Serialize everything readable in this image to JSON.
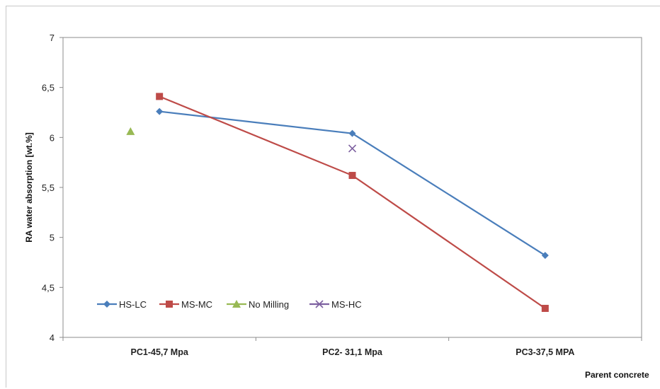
{
  "chart_data": {
    "type": "line",
    "xlabel": "Parent concrete",
    "ylabel": "RA water absorption [wt.%]",
    "categories": [
      "PC1-45,7 Mpa",
      "PC2- 31,1 Mpa",
      "PC3-37,5 MPA"
    ],
    "yticks": [
      "4",
      "4,5",
      "5",
      "5,5",
      "6",
      "6,5",
      "7"
    ],
    "ylim": [
      4,
      7
    ],
    "grid": false,
    "legend_position": "bottom-left",
    "series": [
      {
        "name": "HS-LC",
        "marker": "diamond",
        "color": "#4a7ebb",
        "x_offset": 0,
        "values": [
          6.26,
          6.04,
          4.82
        ]
      },
      {
        "name": "MS-MC",
        "marker": "square",
        "color": "#be4b48",
        "x_offset": 0,
        "values": [
          6.41,
          5.62,
          4.29
        ]
      },
      {
        "name": "No Milling",
        "marker": "triangle",
        "color": "#98b954",
        "x_offset": -0.15,
        "values": [
          6.06,
          null,
          null
        ]
      },
      {
        "name": "MS-HC",
        "marker": "x",
        "color": "#7d60a0",
        "x_offset": 0,
        "values": [
          null,
          5.89,
          null
        ]
      }
    ]
  }
}
